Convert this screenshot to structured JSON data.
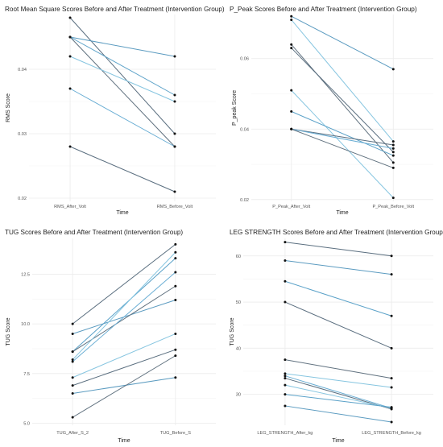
{
  "chart_data": [
    {
      "type": "line",
      "title": "Root Mean Square Scores Before and After Treatment (Intervention Group)",
      "xlabel": "Time",
      "ylabel": "RMS Score",
      "categories": [
        "RMS_After_Volt",
        "RMS_Before_Volt"
      ],
      "ylim": [
        0.0195,
        0.0485
      ],
      "yticks": [
        0.02,
        0.03,
        0.04
      ],
      "ytick_labels": [
        "0.02",
        "0.03",
        "0.04"
      ],
      "grid": true,
      "series": [
        {
          "values": [
            0.048,
            0.03
          ],
          "color": "#5a6e7f"
        },
        {
          "values": [
            0.045,
            0.042
          ],
          "color": "#5b9bc0"
        },
        {
          "values": [
            0.045,
            0.036
          ],
          "color": "#5aa1c8"
        },
        {
          "values": [
            0.045,
            0.028
          ],
          "color": "#60717f"
        },
        {
          "values": [
            0.042,
            0.035
          ],
          "color": "#86c5e0"
        },
        {
          "values": [
            0.037,
            0.028
          ],
          "color": "#6aaed4"
        },
        {
          "values": [
            0.028,
            0.021
          ],
          "color": "#5a6e7f"
        }
      ]
    },
    {
      "type": "line",
      "title": "P_Peak Scores Before and After Treatment (Intervention Group)",
      "xlabel": "Time",
      "ylabel": "P_peak Score",
      "categories": [
        "P_Peak_After_Volt",
        "P_Peak_Before_Volt"
      ],
      "ylim": [
        0.0195,
        0.0725
      ],
      "yticks": [
        0.02,
        0.04,
        0.06
      ],
      "ytick_labels": [
        "0.02",
        "0.04",
        "0.06"
      ],
      "grid": true,
      "series": [
        {
          "values": [
            0.072,
            0.057
          ],
          "color": "#5b9bc0"
        },
        {
          "values": [
            0.071,
            0.0365
          ],
          "color": "#86c5e0"
        },
        {
          "values": [
            0.064,
            0.0305
          ],
          "color": "#60717f"
        },
        {
          "values": [
            0.063,
            0.0335
          ],
          "color": "#5a6e7f"
        },
        {
          "values": [
            0.051,
            0.0205
          ],
          "color": "#86c5e0"
        },
        {
          "values": [
            0.045,
            0.0325
          ],
          "color": "#5aa1c8"
        },
        {
          "values": [
            0.04,
            0.0355
          ],
          "color": "#5a6e7f"
        },
        {
          "values": [
            0.04,
            0.0345
          ],
          "color": "#6aaed4"
        },
        {
          "values": [
            0.04,
            0.029
          ],
          "color": "#60717f"
        }
      ]
    },
    {
      "type": "line",
      "title": "TUG Scores Before and After Treatment (Intervention Group)",
      "xlabel": "Time",
      "ylabel": "TUG Score",
      "categories": [
        "TUG_After_S_2",
        "TUG_Before_S"
      ],
      "ylim": [
        4.9,
        14.3
      ],
      "yticks": [
        5.0,
        7.5,
        10.0,
        12.5
      ],
      "ytick_labels": [
        "5.0",
        "7.5",
        "10.0",
        "12.5"
      ],
      "grid": true,
      "series": [
        {
          "values": [
            10.0,
            14.0
          ],
          "color": "#5a6e7f"
        },
        {
          "values": [
            9.5,
            11.2
          ],
          "color": "#5b9bc0"
        },
        {
          "values": [
            8.6,
            13.3
          ],
          "color": "#5aa1c8"
        },
        {
          "values": [
            8.6,
            11.9
          ],
          "color": "#60717f"
        },
        {
          "values": [
            8.2,
            13.6
          ],
          "color": "#86c5e0"
        },
        {
          "values": [
            8.1,
            12.6
          ],
          "color": "#6aaed4"
        },
        {
          "values": [
            7.3,
            9.5
          ],
          "color": "#86c5e0"
        },
        {
          "values": [
            6.9,
            8.7
          ],
          "color": "#5a6e7f"
        },
        {
          "values": [
            6.5,
            7.3
          ],
          "color": "#5b9bc0"
        },
        {
          "values": [
            5.3,
            8.4
          ],
          "color": "#60717f"
        }
      ]
    },
    {
      "type": "line",
      "title": "LEG STRENGTH Scores Before and After Treatment (Intervention Group)",
      "xlabel": "Time",
      "ylabel": "TUG Score",
      "categories": [
        "LEG_STRENGTH_After_kg",
        "LEG_STRENGTH_Before_kg"
      ],
      "ylim": [
        23.3,
        63.8
      ],
      "yticks": [
        30,
        40,
        50,
        60
      ],
      "ytick_labels": [
        "30",
        "40",
        "50",
        "60"
      ],
      "grid": true,
      "series": [
        {
          "values": [
            63.0,
            60.0
          ],
          "color": "#5a6e7f"
        },
        {
          "values": [
            59.0,
            56.0
          ],
          "color": "#5b9bc0"
        },
        {
          "values": [
            54.5,
            47.0
          ],
          "color": "#5aa1c8"
        },
        {
          "values": [
            50.0,
            40.0
          ],
          "color": "#5a6e7f"
        },
        {
          "values": [
            37.5,
            33.5
          ],
          "color": "#60717f"
        },
        {
          "values": [
            34.5,
            31.5
          ],
          "color": "#86c5e0"
        },
        {
          "values": [
            34.0,
            27.0
          ],
          "color": "#6aaed4"
        },
        {
          "values": [
            33.5,
            26.8
          ],
          "color": "#5a6e7f"
        },
        {
          "values": [
            32.0,
            27.0
          ],
          "color": "#86c5e0"
        },
        {
          "values": [
            30.0,
            27.2
          ],
          "color": "#5aa1c8"
        },
        {
          "values": [
            27.5,
            24.0
          ],
          "color": "#5b9bc0"
        }
      ]
    }
  ]
}
